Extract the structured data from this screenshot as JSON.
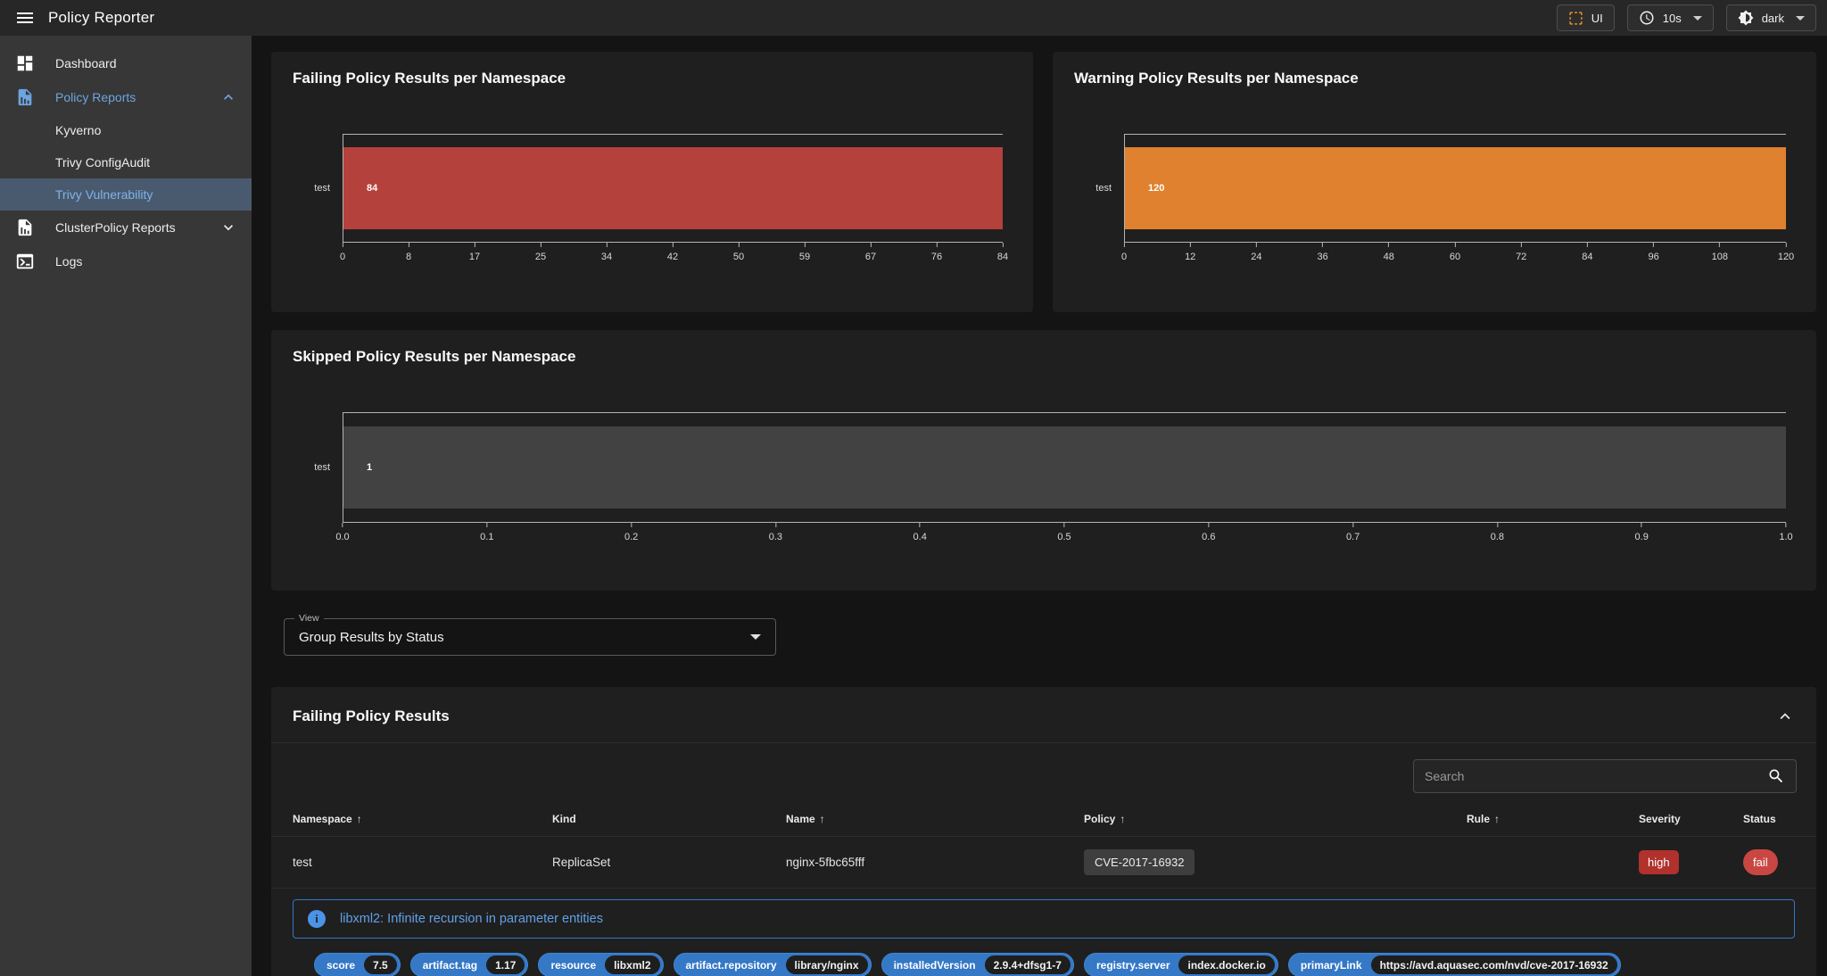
{
  "topbar": {
    "title": "Policy Reporter",
    "ui_button_label": "UI",
    "refresh_interval": "10s",
    "theme_value": "dark"
  },
  "sidebar": {
    "items": [
      {
        "label": "Dashboard",
        "icon": "view-dashboard-icon"
      },
      {
        "label": "Policy Reports",
        "icon": "file-chart-icon",
        "expanded": true
      },
      {
        "label": "Kyverno"
      },
      {
        "label": "Trivy ConfigAudit"
      },
      {
        "label": "Trivy Vulnerability",
        "selected": true
      },
      {
        "label": "ClusterPolicy Reports",
        "icon": "file-chart-icon",
        "expanded": false
      },
      {
        "label": "Logs",
        "icon": "console-icon"
      }
    ]
  },
  "chart_data": [
    {
      "type": "bar",
      "orientation": "horizontal",
      "title": "Failing Policy Results per Namespace",
      "categories": [
        "test"
      ],
      "values": [
        84
      ],
      "bar_color": "#b5413d",
      "xlim": [
        0,
        84
      ],
      "xticks": [
        "0",
        "8",
        "17",
        "25",
        "34",
        "42",
        "50",
        "59",
        "67",
        "76",
        "84"
      ],
      "grid": false,
      "legend": false
    },
    {
      "type": "bar",
      "orientation": "horizontal",
      "title": "Warning Policy Results per Namespace",
      "categories": [
        "test"
      ],
      "values": [
        120
      ],
      "bar_color": "#e0812f",
      "xlim": [
        0,
        120
      ],
      "xticks": [
        "0",
        "12",
        "24",
        "36",
        "48",
        "60",
        "72",
        "84",
        "96",
        "108",
        "120"
      ],
      "grid": false,
      "legend": false
    },
    {
      "type": "bar",
      "orientation": "horizontal",
      "title": "Skipped Policy Results per Namespace",
      "categories": [
        "test"
      ],
      "values": [
        1
      ],
      "bar_color": "#424242",
      "xlim": [
        0,
        1
      ],
      "xticks": [
        "0.0",
        "0.1",
        "0.2",
        "0.3",
        "0.4",
        "0.5",
        "0.6",
        "0.7",
        "0.8",
        "0.9",
        "1.0"
      ],
      "grid": false,
      "legend": false
    }
  ],
  "view_select": {
    "label": "View",
    "value": "Group Results by Status"
  },
  "results_panel": {
    "title": "Failing Policy Results",
    "search_placeholder": "Search",
    "table": {
      "columns": [
        {
          "label": "Namespace",
          "sorted": true
        },
        {
          "label": "Kind",
          "sorted": false
        },
        {
          "label": "Name",
          "sorted": true
        },
        {
          "label": "Policy",
          "sorted": true
        },
        {
          "label": "Rule",
          "sorted": true
        },
        {
          "label": "Severity",
          "sorted": false
        },
        {
          "label": "Status",
          "sorted": false
        }
      ],
      "rows": [
        {
          "namespace": "test",
          "kind": "ReplicaSet",
          "name": "nginx-5fbc65fff",
          "policy": "CVE-2017-16932",
          "rule": "",
          "severity": "high",
          "status": "fail"
        }
      ]
    },
    "detail": {
      "message": "libxml2: Infinite recursion in parameter entities",
      "properties": [
        {
          "key": "score",
          "value": "7.5"
        },
        {
          "key": "artifact.tag",
          "value": "1.17"
        },
        {
          "key": "resource",
          "value": "libxml2"
        },
        {
          "key": "artifact.repository",
          "value": "library/nginx"
        },
        {
          "key": "installedVersion",
          "value": "2.9.4+dfsg1-7"
        },
        {
          "key": "registry.server",
          "value": "index.docker.io"
        },
        {
          "key": "primaryLink",
          "value": "https://avd.aquasec.com/nvd/cve-2017-16932"
        }
      ]
    }
  },
  "colors": {
    "accent_blue": "#6ca5e0",
    "fail_bar": "#b5413d",
    "warn_bar": "#e0812f",
    "skip_bar": "#424242",
    "severity_high_bg": "#b1312c",
    "status_fail_bg": "#c94743",
    "chip_bg_blue": "#3478c6",
    "ui_icon_orange": "#e8912d"
  }
}
